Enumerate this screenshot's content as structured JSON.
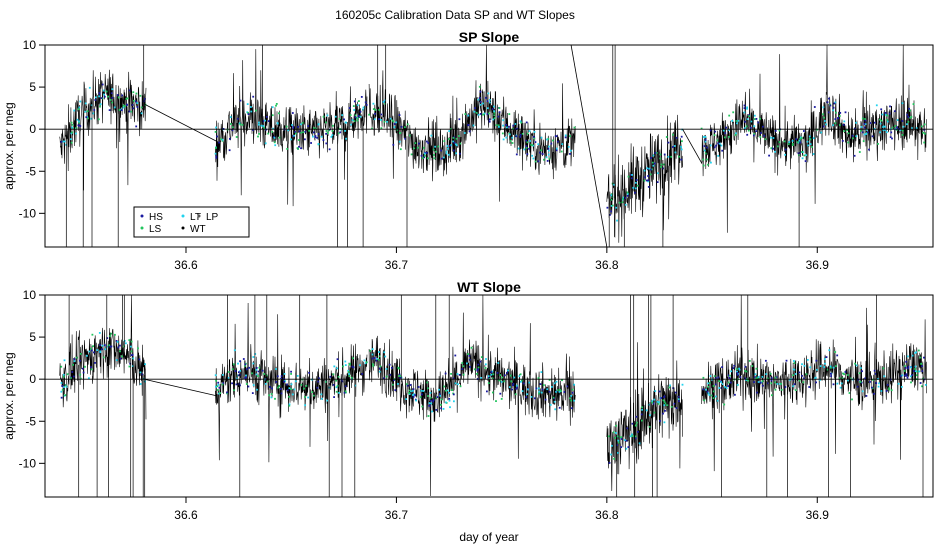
{
  "page": {
    "title": "160205c   Calibration Data SP and WT Slopes",
    "xlabel": "day of year"
  },
  "legend": {
    "placement": "bottom-left of top panel",
    "entries": [
      {
        "label": "HS",
        "color": "#1a1aa0"
      },
      {
        "label": "LT",
        "color": "#22d3ee"
      },
      {
        "label": "LP",
        "color": "#555555"
      },
      {
        "label": "LS",
        "color": "#22c55e"
      },
      {
        "label": "WT",
        "color": "#000000"
      }
    ]
  },
  "chart_data": [
    {
      "type": "line",
      "title": "SP Slope",
      "ylabel": "approx. per meg",
      "xlim": [
        36.533,
        36.955
      ],
      "ylim": [
        -14,
        10
      ],
      "xticks": [
        36.6,
        36.7,
        36.8,
        36.9
      ],
      "yticks": [
        -10,
        -5,
        0,
        5,
        10
      ],
      "reference_line": 0,
      "grid": false,
      "trend_knots": [
        [
          36.54,
          -2.5
        ],
        [
          36.548,
          1.0
        ],
        [
          36.556,
          3.2
        ],
        [
          36.562,
          4.2
        ],
        [
          36.568,
          3.5
        ],
        [
          36.574,
          3.2
        ],
        [
          36.58,
          2.5
        ],
        [
          36.615,
          -1.5
        ],
        [
          36.622,
          0.5
        ],
        [
          36.63,
          1.5
        ],
        [
          36.64,
          0.0
        ],
        [
          36.66,
          -0.5
        ],
        [
          36.675,
          0.5
        ],
        [
          36.685,
          2.5
        ],
        [
          36.695,
          1.5
        ],
        [
          36.71,
          -2.0
        ],
        [
          36.725,
          -2.5
        ],
        [
          36.74,
          3.0
        ],
        [
          36.755,
          0.0
        ],
        [
          36.77,
          -2.5
        ],
        [
          36.785,
          -1.5
        ],
        [
          36.79,
          -6.0
        ],
        [
          36.8,
          -9.0
        ],
        [
          36.81,
          -7.0
        ],
        [
          36.82,
          -5.0
        ],
        [
          36.83,
          -3.0
        ],
        [
          36.835,
          -1.5
        ],
        [
          36.85,
          -2.0
        ],
        [
          36.865,
          1.0
        ],
        [
          36.88,
          -1.5
        ],
        [
          36.895,
          -2.0
        ],
        [
          36.905,
          2.5
        ],
        [
          36.915,
          -1.0
        ],
        [
          36.93,
          0.5
        ],
        [
          36.945,
          1.0
        ],
        [
          36.952,
          -0.5
        ]
      ],
      "connectors": [
        [
          36.58,
          3.0,
          36.615,
          -1.5
        ],
        [
          36.783,
          10.0,
          36.8,
          -14.0
        ],
        [
          36.836,
          0.0,
          36.845,
          -4.0
        ]
      ],
      "series": [
        {
          "name": "HS",
          "color": "#1a1aa0"
        },
        {
          "name": "LT",
          "color": "#22d3ee"
        },
        {
          "name": "LP",
          "color": "#555555"
        },
        {
          "name": "LS",
          "color": "#22c55e"
        },
        {
          "name": "WT",
          "color": "#000000"
        }
      ]
    },
    {
      "type": "line",
      "title": "WT Slope",
      "ylabel": "approx. per meg",
      "xlim": [
        36.533,
        36.955
      ],
      "ylim": [
        -14,
        10
      ],
      "xticks": [
        36.6,
        36.7,
        36.8,
        36.9
      ],
      "yticks": [
        -10,
        -5,
        0,
        5,
        10
      ],
      "reference_line": 0,
      "grid": false,
      "trend_knots": [
        [
          36.54,
          -0.5
        ],
        [
          36.548,
          1.5
        ],
        [
          36.556,
          3.0
        ],
        [
          36.562,
          3.8
        ],
        [
          36.568,
          3.2
        ],
        [
          36.574,
          2.5
        ],
        [
          36.58,
          0.5
        ],
        [
          36.615,
          -1.5
        ],
        [
          36.622,
          0.5
        ],
        [
          36.63,
          1.0
        ],
        [
          36.64,
          -0.5
        ],
        [
          36.66,
          -1.0
        ],
        [
          36.675,
          0.0
        ],
        [
          36.69,
          2.5
        ],
        [
          36.705,
          -1.0
        ],
        [
          36.72,
          -2.5
        ],
        [
          36.735,
          2.0
        ],
        [
          36.75,
          0.0
        ],
        [
          36.765,
          -1.5
        ],
        [
          36.785,
          -2.0
        ],
        [
          36.8,
          -8.0
        ],
        [
          36.812,
          -6.0
        ],
        [
          36.822,
          -3.5
        ],
        [
          36.835,
          -2.0
        ],
        [
          36.85,
          -1.0
        ],
        [
          36.865,
          0.5
        ],
        [
          36.88,
          -0.5
        ],
        [
          36.895,
          0.5
        ],
        [
          36.905,
          1.5
        ],
        [
          36.92,
          -0.5
        ],
        [
          36.935,
          0.5
        ],
        [
          36.948,
          2.0
        ],
        [
          36.952,
          0.0
        ]
      ],
      "connectors": [
        [
          36.58,
          0.0,
          36.615,
          -2.0
        ]
      ],
      "series": [
        {
          "name": "HS",
          "color": "#1a1aa0"
        },
        {
          "name": "LT",
          "color": "#22d3ee"
        },
        {
          "name": "LP",
          "color": "#555555"
        },
        {
          "name": "LS",
          "color": "#22c55e"
        },
        {
          "name": "WT",
          "color": "#000000"
        }
      ]
    }
  ]
}
